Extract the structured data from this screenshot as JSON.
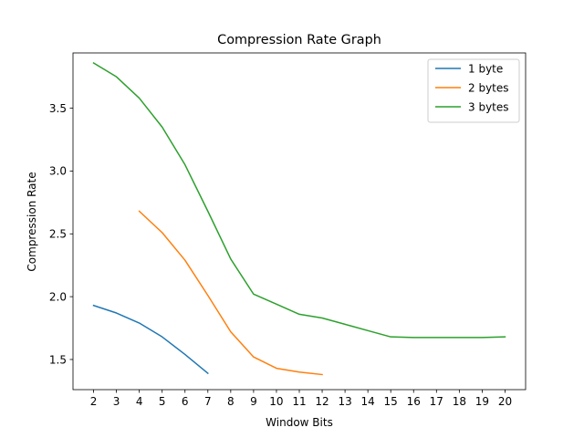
{
  "chart_data": {
    "type": "line",
    "title": "Compression Rate Graph",
    "xlabel": "Window Bits",
    "ylabel": "Compression Rate",
    "xlim": [
      1.1,
      20.9
    ],
    "ylim": [
      1.26,
      3.94
    ],
    "xticks": [
      2,
      3,
      4,
      5,
      6,
      7,
      8,
      9,
      10,
      11,
      12,
      13,
      14,
      15,
      16,
      17,
      18,
      19,
      20
    ],
    "yticks": [
      1.5,
      2.0,
      2.5,
      3.0,
      3.5
    ],
    "ytick_labels": [
      "1.5",
      "2.0",
      "2.5",
      "3.0",
      "3.5"
    ],
    "grid": false,
    "legend_position": "top-right",
    "series": [
      {
        "name": "1 byte",
        "color": "#1f77b4",
        "x": [
          2,
          3,
          4,
          5,
          6,
          7
        ],
        "values": [
          1.93,
          1.87,
          1.79,
          1.68,
          1.54,
          1.39
        ]
      },
      {
        "name": "2 bytes",
        "color": "#ff7f0e",
        "x": [
          4,
          5,
          6,
          7,
          8,
          9,
          10,
          11,
          12
        ],
        "values": [
          2.68,
          2.51,
          2.29,
          2.01,
          1.72,
          1.52,
          1.43,
          1.4,
          1.38
        ]
      },
      {
        "name": "3 bytes",
        "color": "#2ca02c",
        "x": [
          2,
          3,
          4,
          5,
          6,
          7,
          8,
          9,
          10,
          11,
          12,
          13,
          14,
          15,
          16,
          17,
          18,
          19,
          20
        ],
        "values": [
          3.86,
          3.75,
          3.58,
          3.35,
          3.05,
          2.68,
          2.3,
          2.02,
          1.94,
          1.86,
          1.83,
          1.78,
          1.73,
          1.68,
          1.675,
          1.675,
          1.675,
          1.675,
          1.68
        ]
      }
    ]
  }
}
